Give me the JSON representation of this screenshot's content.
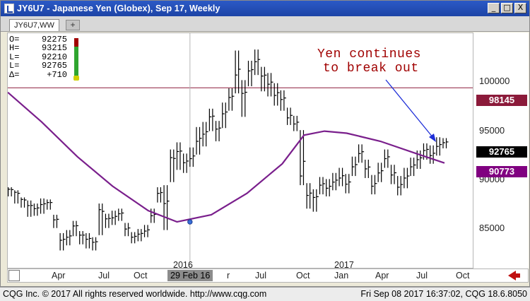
{
  "window": {
    "title": "JY6U7 - Japanese Yen (Globex), Sep 17, Weekly",
    "buttons": {
      "minimize": "_",
      "maximize": "□",
      "close": "X"
    }
  },
  "tabs": [
    {
      "label": "JY6U7,WW"
    }
  ],
  "tab_add_label": "+",
  "ohlc": [
    {
      "key": "O=",
      "value": "92275"
    },
    {
      "key": "H=",
      "value": "93215"
    },
    {
      "key": "L=",
      "value": "92210"
    },
    {
      "key": "L=",
      "value": "92765"
    },
    {
      "key": "Δ=",
      "value": "+710"
    }
  ],
  "annotation": {
    "line1": "Yen continues",
    "line2": "to break out"
  },
  "price_axis": {
    "labels": [
      "100000",
      "95000",
      "90000",
      "85000"
    ],
    "badges": [
      {
        "text": "98145",
        "color": "#8b1a3a"
      },
      {
        "text": "92765",
        "color": "#000000"
      },
      {
        "text": "90773",
        "color": "#800080"
      }
    ]
  },
  "time_axis": {
    "labels": [
      "Apr",
      "Jul",
      "Oct",
      "2016",
      "r",
      "Jul",
      "Oct",
      "2017",
      "Jan",
      "Apr",
      "Jul",
      "Oct"
    ],
    "cursor_label": "29 Feb 16"
  },
  "footer": {
    "left": "CQG Inc. © 2017 All rights reserved worldwide. http://www.cqg.com",
    "right": "Fri Sep 08 2017 16:37:02, CQG 18.6.8050"
  },
  "chart_data": {
    "type": "bar",
    "title": "JY6U7 - Japanese Yen (Globex), Sep 17, Weekly",
    "ylim": [
      80500,
      103500
    ],
    "yticks": [
      85000,
      90000,
      95000,
      100000
    ],
    "horizontal_line": 98145,
    "last_price": 92765,
    "moving_average_last": 90773,
    "x_range": [
      "2015-02-01",
      "2017-10-31"
    ],
    "bars": [
      [
        "2015-02-02",
        88200,
        88400,
        87500
      ],
      [
        "2015-02-16",
        87900,
        88100,
        86800
      ],
      [
        "2015-03-02",
        87200,
        87400,
        86400
      ],
      [
        "2015-03-16",
        86600,
        87100,
        85500
      ],
      [
        "2015-03-30",
        86300,
        86800,
        85600
      ],
      [
        "2015-04-13",
        86700,
        87300,
        85800
      ],
      [
        "2015-04-27",
        86900,
        87200,
        86200
      ],
      [
        "2015-05-11",
        85200,
        85700,
        84400
      ],
      [
        "2015-05-25",
        83200,
        83900,
        82200
      ],
      [
        "2015-06-08",
        83500,
        84200,
        82700
      ],
      [
        "2015-06-22",
        84600,
        85100,
        83600
      ],
      [
        "2015-07-06",
        83700,
        84100,
        82800
      ],
      [
        "2015-07-20",
        83300,
        83900,
        82400
      ],
      [
        "2015-08-03",
        83000,
        83500,
        82200
      ],
      [
        "2015-08-17",
        86200,
        86800,
        83700
      ],
      [
        "2015-08-31",
        85300,
        85800,
        84400
      ],
      [
        "2015-09-14",
        85400,
        86100,
        84700
      ],
      [
        "2015-09-28",
        85800,
        86300,
        85100
      ],
      [
        "2015-10-12",
        84300,
        84900,
        83600
      ],
      [
        "2015-10-26",
        83500,
        84000,
        82900
      ],
      [
        "2015-11-09",
        83800,
        84300,
        83100
      ],
      [
        "2015-11-23",
        84100,
        84700,
        83500
      ],
      [
        "2015-12-07",
        85600,
        86300,
        84900
      ],
      [
        "2015-12-21",
        87800,
        88400,
        86900
      ],
      [
        "2016-01-04",
        86800,
        88600,
        84200
      ],
      [
        "2016-01-18",
        91300,
        92100,
        88900
      ],
      [
        "2016-02-01",
        91900,
        92800,
        90100
      ],
      [
        "2016-02-15",
        90800,
        91700,
        89800
      ],
      [
        "2016-02-29",
        91200,
        92300,
        90400
      ],
      [
        "2016-03-14",
        92900,
        94300,
        91600
      ],
      [
        "2016-03-28",
        93600,
        94800,
        92400
      ],
      [
        "2016-04-11",
        95300,
        96100,
        93900
      ],
      [
        "2016-04-25",
        94100,
        94900,
        92900
      ],
      [
        "2016-05-09",
        95600,
        96700,
        94200
      ],
      [
        "2016-05-23",
        97200,
        98100,
        95900
      ],
      [
        "2016-06-06",
        99400,
        101800,
        97600
      ],
      [
        "2016-06-20",
        97600,
        98900,
        95300
      ],
      [
        "2016-07-04",
        99800,
        100800,
        98300
      ],
      [
        "2016-07-18",
        100700,
        101900,
        99400
      ],
      [
        "2016-08-01",
        99300,
        100200,
        97800
      ],
      [
        "2016-08-15",
        98500,
        99600,
        97300
      ],
      [
        "2016-08-29",
        97400,
        98600,
        96400
      ],
      [
        "2016-09-12",
        97000,
        97900,
        95900
      ],
      [
        "2016-09-26",
        95200,
        96200,
        94500
      ],
      [
        "2016-10-10",
        94600,
        95400,
        93900
      ],
      [
        "2016-10-24",
        89500,
        94000,
        88600
      ],
      [
        "2016-11-07",
        87600,
        88800,
        86300
      ],
      [
        "2016-11-21",
        87400,
        88200,
        86000
      ],
      [
        "2016-12-05",
        88600,
        89400,
        87700
      ],
      [
        "2016-12-19",
        88300,
        89200,
        87500
      ],
      [
        "2017-01-02",
        88900,
        89800,
        88100
      ],
      [
        "2017-01-16",
        89300,
        90300,
        88500
      ],
      [
        "2017-01-30",
        88700,
        89700,
        87800
      ],
      [
        "2017-02-13",
        90400,
        91400,
        89500
      ],
      [
        "2017-02-27",
        91700,
        92600,
        90800
      ],
      [
        "2017-03-13",
        90200,
        91100,
        89300
      ],
      [
        "2017-03-27",
        88500,
        89600,
        87700
      ],
      [
        "2017-04-10",
        89800,
        90800,
        88900
      ],
      [
        "2017-04-24",
        91200,
        92100,
        90300
      ],
      [
        "2017-05-08",
        89600,
        90600,
        88700
      ],
      [
        "2017-05-22",
        88400,
        89500,
        87600
      ],
      [
        "2017-06-05",
        89300,
        90300,
        88300
      ],
      [
        "2017-06-19",
        90400,
        91300,
        89500
      ],
      [
        "2017-07-03",
        91100,
        92000,
        90200
      ],
      [
        "2017-07-17",
        92000,
        92700,
        91100
      ],
      [
        "2017-07-31",
        91500,
        92500,
        90700
      ],
      [
        "2017-08-14",
        92400,
        93300,
        91500
      ],
      [
        "2017-08-28",
        92765,
        93215,
        92210
      ]
    ],
    "moving_average": [
      [
        "2015-02-01",
        97700
      ],
      [
        "2015-04-15",
        94800
      ],
      [
        "2015-07-01",
        91400
      ],
      [
        "2015-09-15",
        88500
      ],
      [
        "2015-12-01",
        86100
      ],
      [
        "2016-02-01",
        85000
      ],
      [
        "2016-04-15",
        85700
      ],
      [
        "2016-07-01",
        87800
      ],
      [
        "2016-09-15",
        90700
      ],
      [
        "2016-11-01",
        93500
      ],
      [
        "2016-12-15",
        93900
      ],
      [
        "2017-02-01",
        93700
      ],
      [
        "2017-04-15",
        92900
      ],
      [
        "2017-07-01",
        91700
      ],
      [
        "2017-08-31",
        90773
      ]
    ]
  }
}
